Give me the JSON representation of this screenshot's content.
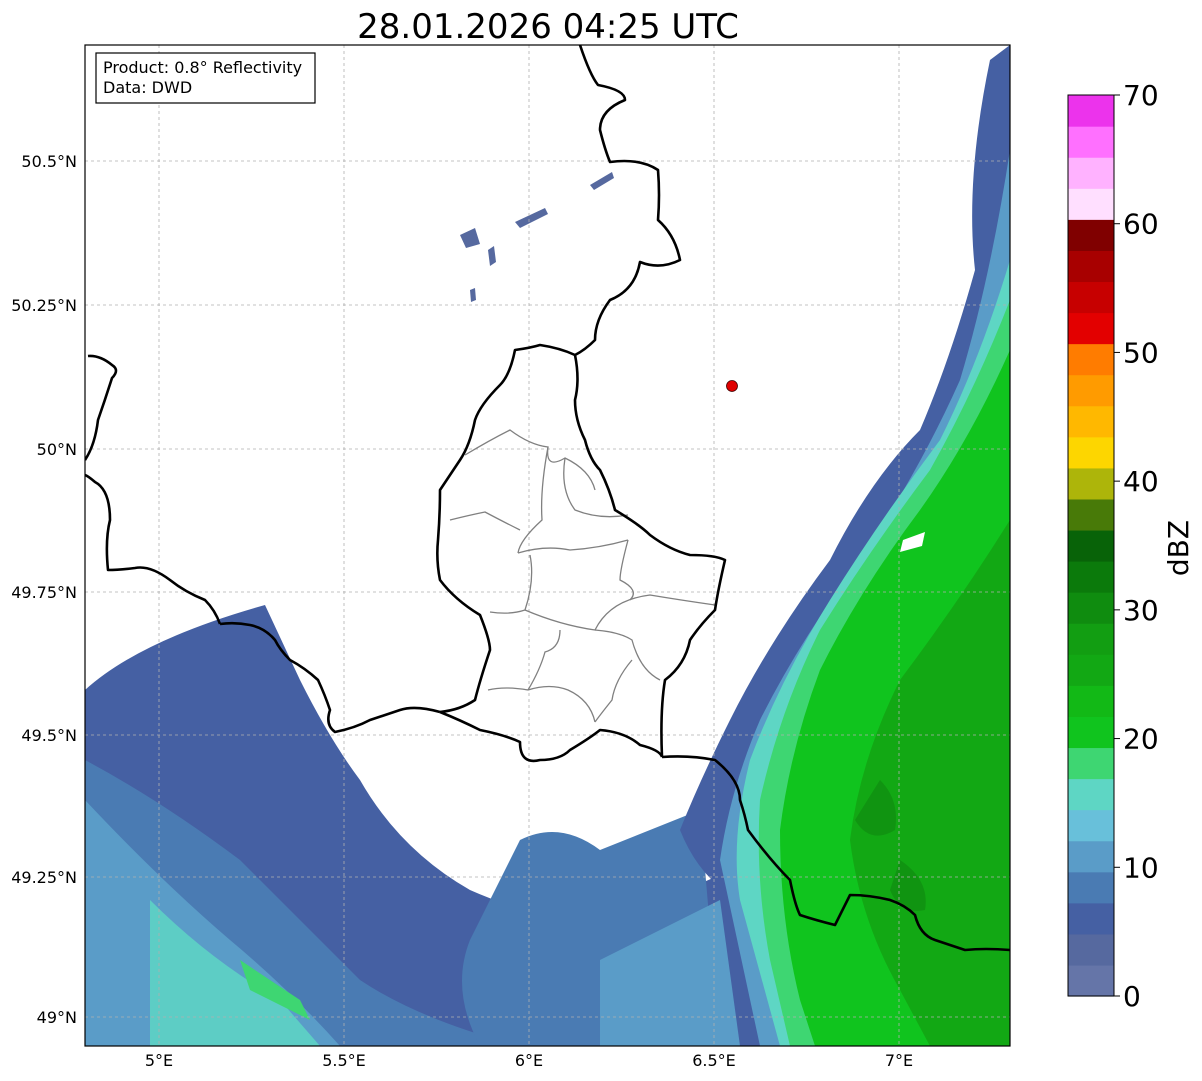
{
  "title": "28.01.2026 04:25 UTC",
  "info_box": {
    "product": "Product: 0.8° Reflectivity",
    "data": "Data: DWD"
  },
  "map": {
    "lon_range": [
      4.8,
      7.3
    ],
    "lat_range": [
      48.95,
      50.7
    ],
    "lat_ticks": [
      {
        "value": 50.5,
        "label": "50.5°N"
      },
      {
        "value": 50.25,
        "label": "50.25°N"
      },
      {
        "value": 50.0,
        "label": "50°N"
      },
      {
        "value": 49.75,
        "label": "49.75°N"
      },
      {
        "value": 49.5,
        "label": "49.5°N"
      },
      {
        "value": 49.25,
        "label": "49.25°N"
      },
      {
        "value": 49.0,
        "label": "49°N"
      }
    ],
    "lon_ticks": [
      {
        "value": 5.0,
        "label": "5°E"
      },
      {
        "value": 5.5,
        "label": "5.5°E"
      },
      {
        "value": 6.0,
        "label": "6°E"
      },
      {
        "value": 6.5,
        "label": "6.5°E"
      },
      {
        "value": 7.0,
        "label": "7°E"
      }
    ],
    "gridlines": true,
    "radar_site": {
      "lon": 6.55,
      "lat": 50.11,
      "color": "#e00000"
    }
  },
  "colorbar": {
    "label": "dBZ",
    "min": 0,
    "max": 70,
    "ticks": [
      0,
      10,
      20,
      30,
      40,
      50,
      60,
      70
    ],
    "colors": [
      "#6575a8",
      "#56699f",
      "#4560a3",
      "#4a7bb3",
      "#5a9cc8",
      "#68c0da",
      "#5ed6c4",
      "#3ed672",
      "#10c41e",
      "#12b916",
      "#12a814",
      "#129e12",
      "#0f8c0f",
      "#0b7a0b",
      "#086308",
      "#487a08",
      "#adb50a",
      "#fdd600",
      "#ffb800",
      "#ff9b00",
      "#ff7c00",
      "#e30000",
      "#c70000",
      "#a80000",
      "#800000",
      "#ffdfff",
      "#ffb2ff",
      "#ff70ff",
      "#ec33ec"
    ]
  }
}
